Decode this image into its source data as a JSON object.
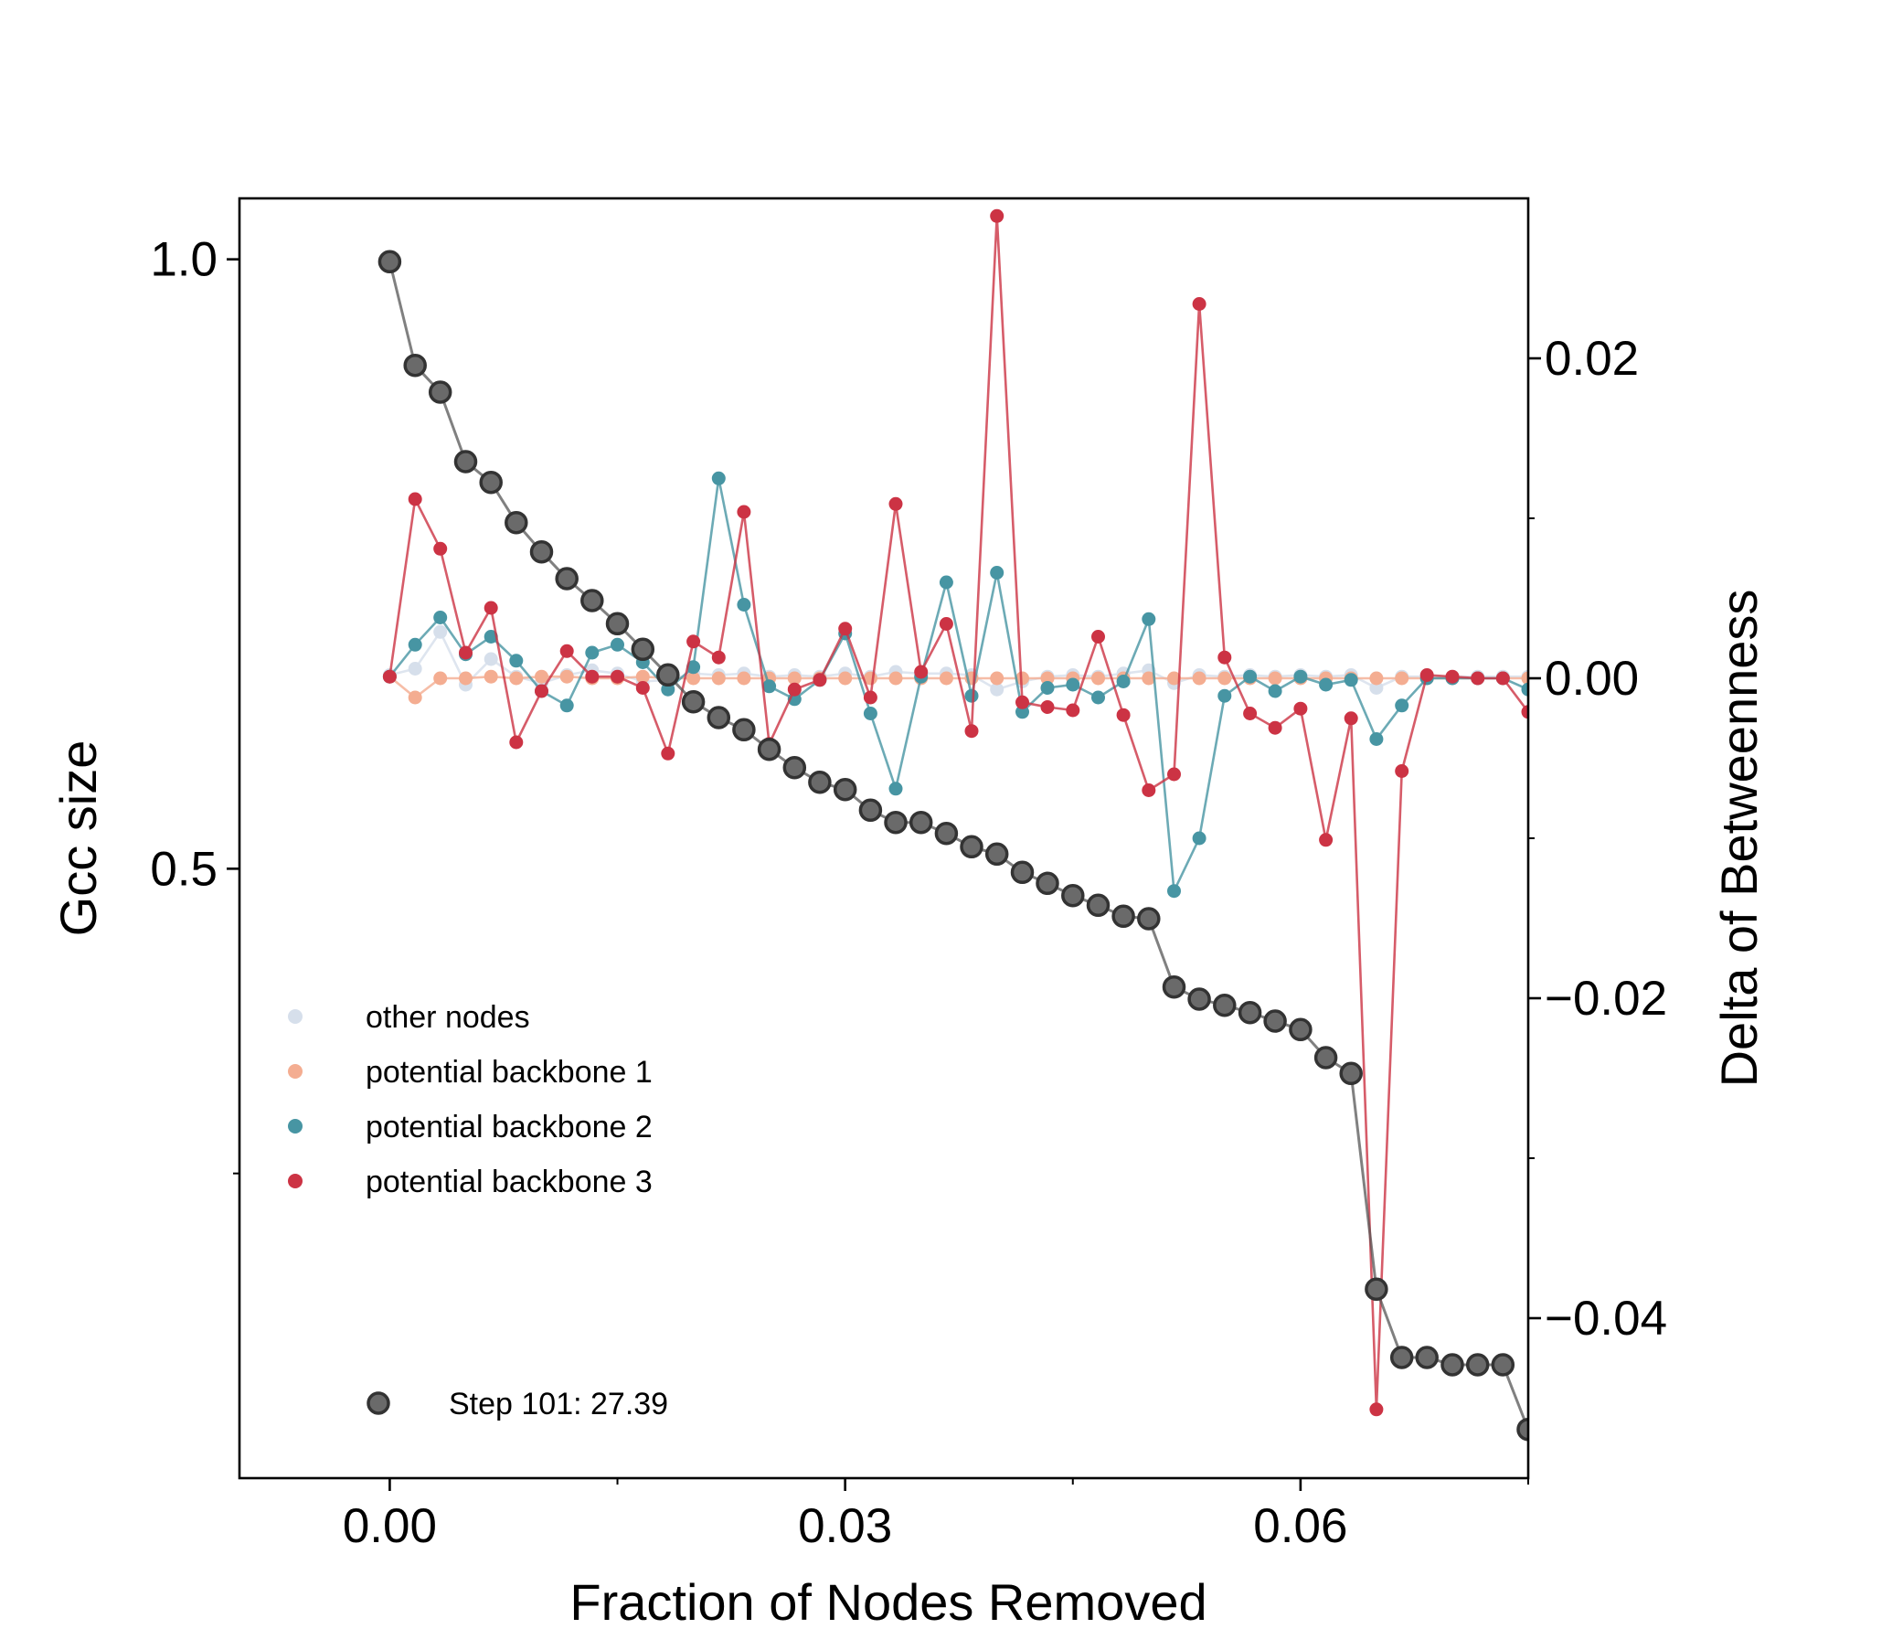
{
  "chart_data": {
    "type": "line",
    "xlabel": "Fraction of Nodes Removed",
    "ylabel_left": "Gcc size",
    "ylabel_right": "Delta of Betweenness",
    "xlim": [
      -0.0099,
      0.075
    ],
    "ylim_left": [
      0.0,
      1.05
    ],
    "ylim_right": [
      -0.05,
      0.03
    ],
    "x_ticks": [
      0.0,
      0.03,
      0.06
    ],
    "x_tick_labels": [
      "0.00",
      "0.03",
      "0.06"
    ],
    "y_left_ticks": [
      0.5,
      1.0
    ],
    "y_left_tick_labels": [
      "0.5",
      "1.0"
    ],
    "y_right_ticks": [
      -0.04,
      -0.02,
      0.0,
      0.02
    ],
    "y_right_tick_labels": [
      "−0.04",
      "−0.02",
      "0.00",
      "0.02"
    ],
    "legend": {
      "placement": "lower-left",
      "entries": [
        "other nodes",
        "potential backbone 1",
        "potential backbone 2",
        "potential backbone 3"
      ],
      "step_label": "Step 101: 27.39"
    },
    "colors": {
      "gcc": "#555555",
      "other": "#d6dfeb",
      "bb1": "#f4ad91",
      "bb2": "#4795a3",
      "bb3": "#cc3344"
    },
    "gcc": {
      "x": [
        0.0,
        0.00167,
        0.00333,
        0.005,
        0.00667,
        0.00833,
        0.01,
        0.01167,
        0.01333,
        0.015,
        0.01667,
        0.01833,
        0.02,
        0.02167,
        0.02333,
        0.025,
        0.02667,
        0.02833,
        0.03,
        0.03167,
        0.03333,
        0.035,
        0.03667,
        0.03833,
        0.04,
        0.04167,
        0.04333,
        0.045,
        0.04667,
        0.04833,
        0.05,
        0.05167,
        0.05333,
        0.055,
        0.05667,
        0.05833,
        0.06,
        0.06167,
        0.06333,
        0.065,
        0.06667,
        0.06833,
        0.07,
        0.07167,
        0.07333,
        0.075
      ],
      "y": [
        0.998,
        0.913,
        0.891,
        0.834,
        0.817,
        0.784,
        0.76,
        0.738,
        0.72,
        0.701,
        0.68,
        0.659,
        0.637,
        0.624,
        0.614,
        0.598,
        0.583,
        0.571,
        0.565,
        0.548,
        0.538,
        0.538,
        0.529,
        0.518,
        0.512,
        0.497,
        0.488,
        0.478,
        0.47,
        0.461,
        0.459,
        0.403,
        0.393,
        0.388,
        0.382,
        0.375,
        0.368,
        0.345,
        0.332,
        0.155,
        0.099,
        0.099,
        0.093,
        0.093,
        0.093,
        0.04
      ]
    },
    "series": [
      {
        "name": "other nodes",
        "x": [
          0.0,
          0.00167,
          0.00333,
          0.005,
          0.00667,
          0.00833,
          0.01,
          0.01167,
          0.01333,
          0.015,
          0.01667,
          0.01833,
          0.02,
          0.02167,
          0.02333,
          0.025,
          0.02667,
          0.02833,
          0.03,
          0.03167,
          0.03333,
          0.035,
          0.03667,
          0.03833,
          0.04,
          0.04167,
          0.04333,
          0.045,
          0.04667,
          0.04833,
          0.05,
          0.05167,
          0.05333,
          0.055,
          0.05667,
          0.05833,
          0.06,
          0.06167,
          0.06333,
          0.065,
          0.06667,
          0.06833,
          0.07,
          0.07167,
          0.07333,
          0.075
        ],
        "y": [
          0.0002,
          0.0006,
          0.0029,
          -0.0004,
          0.0012,
          0.0001,
          -0.0003,
          0.0002,
          0.0005,
          0.0003,
          -0.0002,
          -0.0001,
          0.0003,
          0.0002,
          0.0003,
          0.0001,
          0.0002,
          0.0001,
          0.0003,
          0.0001,
          0.0004,
          0.0003,
          0.0003,
          0.0002,
          -0.0007,
          -0.0002,
          0.0001,
          0.0002,
          0.0001,
          0.0003,
          0.0005,
          -0.0003,
          0.0002,
          0.0001,
          0.0002,
          0.0001,
          0.0002,
          0.0001,
          0.0002,
          -0.0006,
          0.0001,
          0.0001,
          0.0001,
          0.0001,
          0.0001,
          0.0001
        ]
      },
      {
        "name": "potential backbone 1",
        "x": [
          0.0,
          0.00167,
          0.00333,
          0.005,
          0.00667,
          0.00833,
          0.01,
          0.01167,
          0.01333,
          0.015,
          0.01667,
          0.01833,
          0.02,
          0.02167,
          0.02333,
          0.025,
          0.02667,
          0.02833,
          0.03,
          0.03167,
          0.03333,
          0.035,
          0.03667,
          0.03833,
          0.04,
          0.04167,
          0.04333,
          0.045,
          0.04667,
          0.04833,
          0.05,
          0.05167,
          0.05333,
          0.055,
          0.05667,
          0.05833,
          0.06,
          0.06167,
          0.06333,
          0.065,
          0.06667,
          0.06833,
          0.07,
          0.07167,
          0.07333,
          0.075
        ],
        "y": [
          0.0001,
          -0.0012,
          0.0,
          0.0,
          0.0001,
          0.0,
          0.0001,
          0.0001,
          0.0,
          0.0,
          0.0001,
          0.0,
          0.0,
          0.0,
          0.0,
          0.0,
          0.0,
          0.0,
          0.0,
          0.0,
          0.0,
          0.0,
          0.0,
          0.0,
          0.0,
          0.0,
          0.0,
          0.0,
          0.0,
          0.0,
          0.0,
          0.0,
          0.0,
          0.0,
          0.0,
          0.0,
          0.0,
          0.0,
          0.0,
          0.0,
          0.0,
          0.0,
          0.0,
          0.0,
          0.0,
          0.0
        ]
      },
      {
        "name": "potential backbone 2",
        "x": [
          0.0,
          0.00167,
          0.00333,
          0.005,
          0.00667,
          0.00833,
          0.01,
          0.01167,
          0.01333,
          0.015,
          0.01667,
          0.01833,
          0.02,
          0.02167,
          0.02333,
          0.025,
          0.02667,
          0.02833,
          0.03,
          0.03167,
          0.03333,
          0.035,
          0.03667,
          0.03833,
          0.04,
          0.04167,
          0.04333,
          0.045,
          0.04667,
          0.04833,
          0.05,
          0.05167,
          0.05333,
          0.055,
          0.05667,
          0.05833,
          0.06,
          0.06167,
          0.06333,
          0.065,
          0.06667,
          0.06833,
          0.07,
          0.07167,
          0.07333,
          0.075
        ],
        "y": [
          0.0001,
          0.0021,
          0.0038,
          0.0015,
          0.0026,
          0.0011,
          -0.0008,
          -0.0017,
          0.0016,
          0.0021,
          0.001,
          -0.0007,
          0.0007,
          0.0125,
          0.0046,
          -0.0005,
          -0.0013,
          -0.0001,
          0.0028,
          -0.0022,
          -0.0069,
          0.0001,
          0.006,
          -0.0011,
          0.0066,
          -0.0021,
          -0.0006,
          -0.0004,
          -0.0012,
          -0.0002,
          0.0037,
          -0.0133,
          -0.01,
          -0.0011,
          0.0001,
          -0.0008,
          0.0001,
          -0.0004,
          -0.0001,
          -0.0038,
          -0.0017,
          0.0,
          0.0,
          0.0,
          0.0,
          -0.0007
        ]
      },
      {
        "name": "potential backbone 3",
        "x": [
          0.0,
          0.00167,
          0.00333,
          0.005,
          0.00667,
          0.00833,
          0.01,
          0.01167,
          0.01333,
          0.015,
          0.01667,
          0.01833,
          0.02,
          0.02167,
          0.02333,
          0.025,
          0.02667,
          0.02833,
          0.03,
          0.03167,
          0.03333,
          0.035,
          0.03667,
          0.03833,
          0.04,
          0.04167,
          0.04333,
          0.045,
          0.04667,
          0.04833,
          0.05,
          0.05167,
          0.05333,
          0.055,
          0.05667,
          0.05833,
          0.06,
          0.06167,
          0.06333,
          0.065,
          0.06667,
          0.06833,
          0.07,
          0.07167,
          0.07333,
          0.075
        ],
        "y": [
          0.0001,
          0.0112,
          0.0081,
          0.0016,
          0.0044,
          -0.004,
          -0.0008,
          0.0017,
          0.0001,
          0.0001,
          -0.0006,
          -0.0047,
          0.0023,
          0.0013,
          0.0104,
          -0.0041,
          -0.0007,
          -0.0001,
          0.0031,
          -0.0012,
          0.0109,
          0.0004,
          0.0034,
          -0.0033,
          0.0289,
          -0.0015,
          -0.0018,
          -0.002,
          0.0026,
          -0.0023,
          -0.007,
          -0.006,
          0.0234,
          0.0013,
          -0.0022,
          -0.0031,
          -0.0019,
          -0.0101,
          -0.0025,
          -0.0457,
          -0.0058,
          0.0002,
          0.0001,
          0.0,
          0.0,
          -0.0021
        ]
      }
    ]
  }
}
